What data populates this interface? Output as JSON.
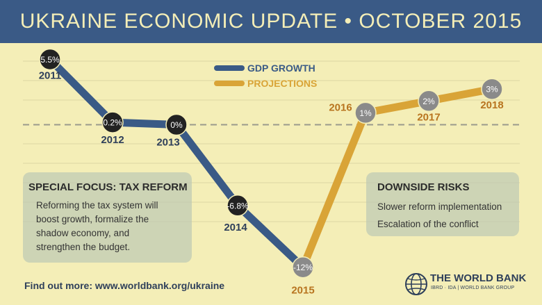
{
  "header": {
    "title": "UKRAINE ECONOMIC UPDATE • OCTOBER 2015"
  },
  "colors": {
    "background": "#f4eeb7",
    "header": "#3a5a86",
    "gdp_line": "#3a5a86",
    "projection_line": "#d9a437",
    "history_marker": "#222222",
    "projection_marker": "#8a8a8a",
    "year_actual": "#2e3f5a",
    "year_projection": "#b8741f"
  },
  "chart_data": {
    "type": "line",
    "title": "",
    "xlabel": "",
    "ylabel": "",
    "series": [
      {
        "name": "GDP GROWTH",
        "x": [
          "2011",
          "2012",
          "2013",
          "2014",
          "2015"
        ],
        "values": [
          5.5,
          0.2,
          0,
          -6.8,
          -12
        ],
        "labels": [
          "5.5%",
          "0.2%",
          "0%",
          "-6.8%",
          "-12%"
        ]
      },
      {
        "name": "PROJECTIONS",
        "x": [
          "2015",
          "2016",
          "2017",
          "2018"
        ],
        "values": [
          -12,
          1,
          2,
          3
        ],
        "labels": [
          "-12%",
          "1%",
          "2%",
          "3%"
        ]
      }
    ],
    "legend": {
      "placement": "top-center"
    },
    "grid": true,
    "zero_line": "dashed"
  },
  "panels": {
    "special_focus": {
      "title": "SPECIAL FOCUS: TAX REFORM",
      "lines": [
        "Reforming the tax system will",
        "boost growth, formalize the",
        "shadow economy, and",
        "strengthen the budget."
      ]
    },
    "downside_risks": {
      "title": "DOWNSIDE RISKS",
      "lines": [
        "Slower reform implementation",
        "Escalation of the conflict"
      ]
    }
  },
  "footer": {
    "link_text": "Find out more: www.worldbank.org/ukraine",
    "logo_name": "THE WORLD BANK",
    "logo_sub": "IBRD · IDA | WORLD BANK GROUP",
    "logo_icon": "globe-icon"
  }
}
